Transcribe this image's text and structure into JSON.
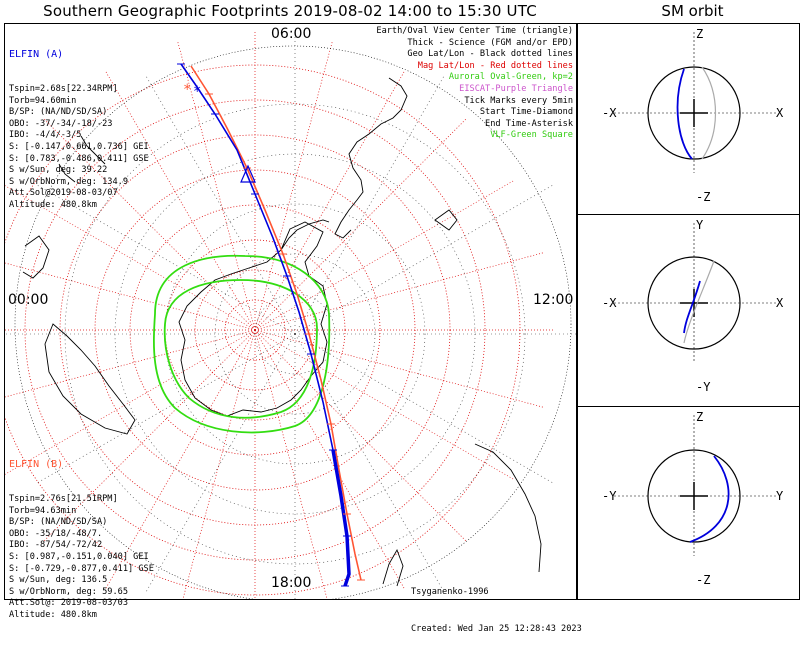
{
  "title": "Southern Geographic Footprints 2019-08-02 14:00 to 15:30 UTC",
  "sm_title": "SM orbit",
  "colors": {
    "elfin_a": "#0000dd",
    "elfin_b": "#ff5533",
    "oval": "#33dd11",
    "grid": "#dd0000",
    "eiscat": "#cc55cc",
    "vlf": "#33dd11"
  },
  "hour_labels": {
    "top": "06:00",
    "left": "00:00",
    "right": "12:00",
    "bottom": "18:00"
  },
  "elfin_a": {
    "name": "ELFIN (A)",
    "lines": [
      "Tspin=2.68s[22.34RPM]",
      "Torb=94.60min",
      "B/SP: (NA/ND/SD/SA)",
      "OBO: -37/-34/-18/-23",
      "IBO: -4/4/-3/5",
      "S: [-0.147,0.661,0.736] GEI",
      "S: [0.783,-0.486,0.411] GSE",
      "S w/Sun, deg: 39.22",
      "S w/OrbNorm, deg: 134.9",
      "Att.Sol@2019-08-03/07",
      "Altitude: 480.8km"
    ]
  },
  "elfin_b": {
    "name": "ELFIN (B)",
    "lines": [
      "Tspin=2.76s[21.51RPM]",
      "Torb=94.63min",
      "B/SP: (NA/ND/SD/SA)",
      "OBO: -35/18/-48/7.",
      "IBO: -87/54/-72/42",
      "S: [0.987,-0.151,0.040] GEI",
      "S: [-0.729,-0.877,0.411] GSE",
      "S w/Sun, deg: 136.5",
      "S w/OrbNorm, deg: 59.65",
      "Att.Sol@: 2019-08-03/03",
      "Altitude: 480.8km"
    ]
  },
  "legend": [
    {
      "text": "Earth/Oval View Center Time (triangle)",
      "color": "#000000"
    },
    {
      "text": "Thick - Science (FGM and/or EPD)",
      "color": "#000000"
    },
    {
      "text": "Geo Lat/Lon - Black dotted lines",
      "color": "#000000"
    },
    {
      "text": "Mag Lat/Lon - Red dotted lines",
      "color": "#dd0000"
    },
    {
      "text": "Auroral Oval-Green, kp=2",
      "color": "#33cc11"
    },
    {
      "text": "EISCAT-Purple Triangle",
      "color": "#cc55cc"
    },
    {
      "text": "Tick Marks every 5min",
      "color": "#000000"
    },
    {
      "text": "Start Time-Diamond",
      "color": "#000000"
    },
    {
      "text": "End Time-Asterisk",
      "color": "#000000"
    },
    {
      "text": "VLF-Green Square",
      "color": "#33cc11"
    }
  ],
  "footer": {
    "model": "Tsyganenko-1996",
    "created": "Created: Wed Jan 25 12:28:43 2023"
  },
  "sm_panels": [
    {
      "top": "Z",
      "bottom": "-Z",
      "left": "-X",
      "right": "X"
    },
    {
      "top": "Y",
      "bottom": "-Y",
      "left": "-X",
      "right": "X"
    },
    {
      "top": "Z",
      "bottom": "-Z",
      "left": "-Y",
      "right": "Y"
    }
  ],
  "chart_data": {
    "type": "scatter",
    "projection": "south-polar",
    "title": "Southern Geographic Footprints 2019-08-02 14:00 to 15:30 UTC",
    "series": [
      {
        "name": "ELFIN (A)",
        "color": "#0000dd"
      },
      {
        "name": "ELFIN (B)",
        "color": "#ff5533"
      }
    ],
    "auroral_oval_kp": 2
  }
}
